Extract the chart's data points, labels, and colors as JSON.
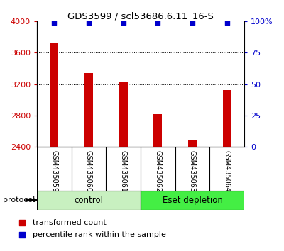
{
  "title": "GDS3599 / scl53686.6.11_16-S",
  "samples": [
    "GSM435059",
    "GSM435060",
    "GSM435061",
    "GSM435062",
    "GSM435063",
    "GSM435064"
  ],
  "bar_values": [
    3720,
    3340,
    3230,
    2820,
    2490,
    3120
  ],
  "percentile_values": [
    99,
    99,
    99,
    99,
    99,
    99
  ],
  "bar_color": "#cc0000",
  "percentile_color": "#0000cc",
  "ymin": 2400,
  "ymax": 4000,
  "yticks": [
    2400,
    2800,
    3200,
    3600,
    4000
  ],
  "right_yticks": [
    0,
    25,
    50,
    75,
    100
  ],
  "right_yticklabels": [
    "0",
    "25",
    "50",
    "75",
    "100%"
  ],
  "group_labels": [
    "control",
    "Eset depletion"
  ],
  "group_starts": [
    0,
    3
  ],
  "group_ends": [
    3,
    6
  ],
  "group_colors": [
    "#c8f0c0",
    "#44ee44"
  ],
  "protocol_label": "protocol",
  "legend_label_red": "transformed count",
  "legend_label_blue": "percentile rank within the sample",
  "bg_color": "#ffffff",
  "sample_label_bg": "#cccccc",
  "bar_width": 0.25
}
